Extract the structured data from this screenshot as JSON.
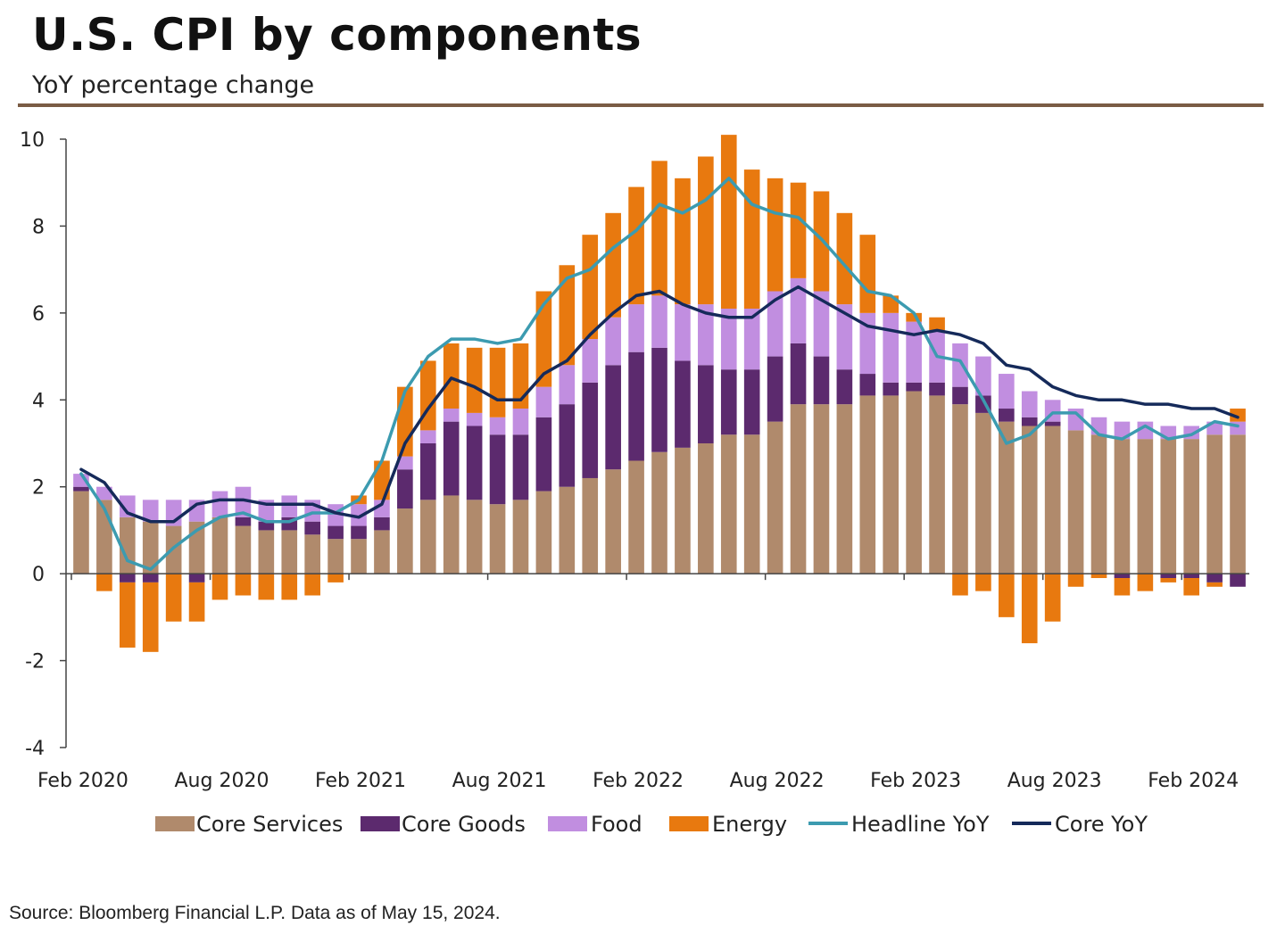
{
  "title": "U.S. CPI by components",
  "subtitle": "YoY percentage change",
  "source": "Source: Bloomberg Financial L.P. Data as of May 15, 2024.",
  "colors": {
    "core_services": "#b08a6c",
    "core_goods": "#5c2a6e",
    "food": "#c18ee0",
    "energy": "#e8790f",
    "headline": "#3c9bb0",
    "core": "#152a5a",
    "rule": "#7a5c44"
  },
  "chart_data": {
    "type": "bar",
    "stacked": true,
    "title": "U.S. CPI by components",
    "subtitle": "YoY percentage change",
    "ylim": [
      -4,
      10
    ],
    "yticks": [
      -4,
      -2,
      0,
      2,
      4,
      6,
      8,
      10
    ],
    "xtick_labels": [
      {
        "index": 0,
        "label": "Feb 2020"
      },
      {
        "index": 6,
        "label": "Aug 2020"
      },
      {
        "index": 12,
        "label": "Feb 2021"
      },
      {
        "index": 18,
        "label": "Aug 2021"
      },
      {
        "index": 24,
        "label": "Feb 2022"
      },
      {
        "index": 30,
        "label": "Aug 2022"
      },
      {
        "index": 36,
        "label": "Feb 2023"
      },
      {
        "index": 42,
        "label": "Aug 2023"
      },
      {
        "index": 48,
        "label": "Feb 2024"
      }
    ],
    "months": [
      "2020-02",
      "2020-03",
      "2020-04",
      "2020-05",
      "2020-06",
      "2020-07",
      "2020-08",
      "2020-09",
      "2020-10",
      "2020-11",
      "2020-12",
      "2021-01",
      "2021-02",
      "2021-03",
      "2021-04",
      "2021-05",
      "2021-06",
      "2021-07",
      "2021-08",
      "2021-09",
      "2021-10",
      "2021-11",
      "2021-12",
      "2022-01",
      "2022-02",
      "2022-03",
      "2022-04",
      "2022-05",
      "2022-06",
      "2022-07",
      "2022-08",
      "2022-09",
      "2022-10",
      "2022-11",
      "2022-12",
      "2023-01",
      "2023-02",
      "2023-03",
      "2023-04",
      "2023-05",
      "2023-06",
      "2023-07",
      "2023-08",
      "2023-09",
      "2023-10",
      "2023-11",
      "2023-12",
      "2024-01",
      "2024-02",
      "2024-03",
      "2024-04"
    ],
    "series": [
      {
        "name": "Core Services",
        "key": "core_services",
        "values": [
          1.9,
          1.7,
          1.3,
          1.2,
          1.1,
          1.2,
          1.3,
          1.1,
          1.0,
          1.0,
          0.9,
          0.8,
          0.8,
          1.0,
          1.5,
          1.7,
          1.8,
          1.7,
          1.6,
          1.7,
          1.9,
          2.0,
          2.2,
          2.4,
          2.6,
          2.8,
          2.9,
          3.0,
          3.2,
          3.2,
          3.5,
          3.9,
          3.9,
          3.9,
          4.1,
          4.1,
          4.2,
          4.1,
          3.9,
          3.7,
          3.5,
          3.4,
          3.4,
          3.3,
          3.2,
          3.1,
          3.1,
          3.1,
          3.1,
          3.2,
          3.2
        ]
      },
      {
        "name": "Core Goods",
        "key": "core_goods",
        "values": [
          0.1,
          0.0,
          -0.2,
          -0.2,
          0.0,
          -0.2,
          0.0,
          0.2,
          0.2,
          0.3,
          0.3,
          0.3,
          0.3,
          0.3,
          0.9,
          1.3,
          1.7,
          1.7,
          1.6,
          1.5,
          1.7,
          1.9,
          2.2,
          2.4,
          2.5,
          2.4,
          2.0,
          1.8,
          1.5,
          1.5,
          1.5,
          1.4,
          1.1,
          0.8,
          0.5,
          0.3,
          0.2,
          0.3,
          0.4,
          0.4,
          0.3,
          0.2,
          0.1,
          0.0,
          0.0,
          -0.1,
          0.0,
          -0.1,
          -0.1,
          -0.2,
          -0.3
        ]
      },
      {
        "name": "Food",
        "key": "food",
        "values": [
          0.3,
          0.3,
          0.5,
          0.5,
          0.6,
          0.5,
          0.6,
          0.7,
          0.5,
          0.5,
          0.5,
          0.5,
          0.5,
          0.4,
          0.3,
          0.3,
          0.3,
          0.3,
          0.4,
          0.6,
          0.7,
          0.9,
          1.0,
          1.1,
          1.1,
          1.2,
          1.3,
          1.4,
          1.4,
          1.4,
          1.5,
          1.5,
          1.5,
          1.5,
          1.4,
          1.6,
          1.4,
          1.2,
          1.0,
          0.9,
          0.8,
          0.6,
          0.5,
          0.5,
          0.4,
          0.4,
          0.4,
          0.3,
          0.3,
          0.3,
          0.3
        ]
      },
      {
        "name": "Energy",
        "key": "energy",
        "values": [
          0.0,
          -0.4,
          -1.5,
          -1.6,
          -1.1,
          -0.9,
          -0.6,
          -0.5,
          -0.6,
          -0.6,
          -0.5,
          -0.2,
          0.2,
          0.9,
          1.6,
          1.6,
          1.5,
          1.5,
          1.6,
          1.5,
          2.2,
          2.3,
          2.4,
          2.4,
          2.7,
          3.1,
          2.9,
          3.4,
          4.0,
          3.2,
          2.6,
          2.2,
          2.3,
          2.1,
          1.8,
          0.4,
          0.2,
          0.3,
          -0.5,
          -0.4,
          -1.0,
          -1.6,
          -1.1,
          -0.3,
          -0.1,
          -0.4,
          -0.4,
          -0.1,
          -0.4,
          -0.1,
          0.3
        ]
      },
      {
        "name": "Headline YoY",
        "key": "headline",
        "type": "line",
        "values": [
          2.3,
          1.5,
          0.3,
          0.1,
          0.6,
          1.0,
          1.3,
          1.4,
          1.2,
          1.2,
          1.4,
          1.4,
          1.7,
          2.6,
          4.2,
          5.0,
          5.4,
          5.4,
          5.3,
          5.4,
          6.2,
          6.8,
          7.0,
          7.5,
          7.9,
          8.5,
          8.3,
          8.6,
          9.1,
          8.5,
          8.3,
          8.2,
          7.7,
          7.1,
          6.5,
          6.4,
          6.0,
          5.0,
          4.9,
          4.0,
          3.0,
          3.2,
          3.7,
          3.7,
          3.2,
          3.1,
          3.4,
          3.1,
          3.2,
          3.5,
          3.4
        ]
      },
      {
        "name": "Core YoY",
        "key": "core",
        "type": "line",
        "values": [
          2.4,
          2.1,
          1.4,
          1.2,
          1.2,
          1.6,
          1.7,
          1.7,
          1.6,
          1.6,
          1.6,
          1.4,
          1.3,
          1.6,
          3.0,
          3.8,
          4.5,
          4.3,
          4.0,
          4.0,
          4.6,
          4.9,
          5.5,
          6.0,
          6.4,
          6.5,
          6.2,
          6.0,
          5.9,
          5.9,
          6.3,
          6.6,
          6.3,
          6.0,
          5.7,
          5.6,
          5.5,
          5.6,
          5.5,
          5.3,
          4.8,
          4.7,
          4.3,
          4.1,
          4.0,
          4.0,
          3.9,
          3.9,
          3.8,
          3.8,
          3.6
        ]
      }
    ],
    "legend": [
      "Core Services",
      "Core Goods",
      "Food",
      "Energy",
      "Headline YoY",
      "Core YoY"
    ],
    "legend_position": "bottom",
    "grid": false
  }
}
